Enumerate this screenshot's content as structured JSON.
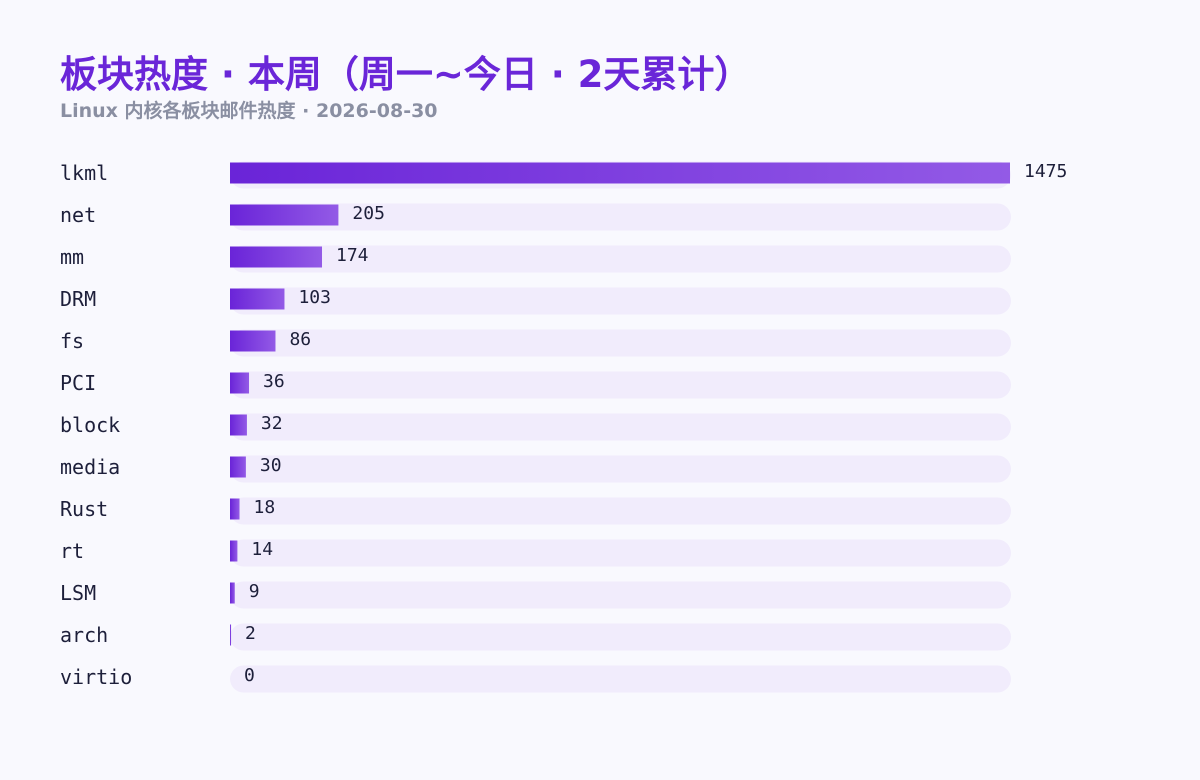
{
  "header": {
    "title": "板块热度 · 本周（周一~今日 · 2天累计）",
    "subtitle": "Linux 内核各板块邮件热度 · 2026-08-30"
  },
  "colors": {
    "title": "#6a26d8",
    "subtitle": "#8a8fa2",
    "bar_start": "#6a24d8",
    "bar_end": "#935ae6",
    "track": "#f1ecfc",
    "background": "#f9f9fe",
    "text": "#1d1f3a"
  },
  "chart_data": {
    "type": "bar",
    "orientation": "horizontal",
    "title": "板块热度 · 本周（周一~今日 · 2天累计）",
    "subtitle": "Linux 内核各板块邮件热度 · 2026-08-30",
    "categories": [
      "lkml",
      "net",
      "mm",
      "DRM",
      "fs",
      "PCI",
      "block",
      "media",
      "Rust",
      "rt",
      "LSM",
      "arch",
      "virtio"
    ],
    "values": [
      1475,
      205,
      174,
      103,
      86,
      36,
      32,
      30,
      18,
      14,
      9,
      2,
      0
    ],
    "xlim": [
      0,
      1475
    ],
    "grid": false,
    "legend": "none"
  }
}
